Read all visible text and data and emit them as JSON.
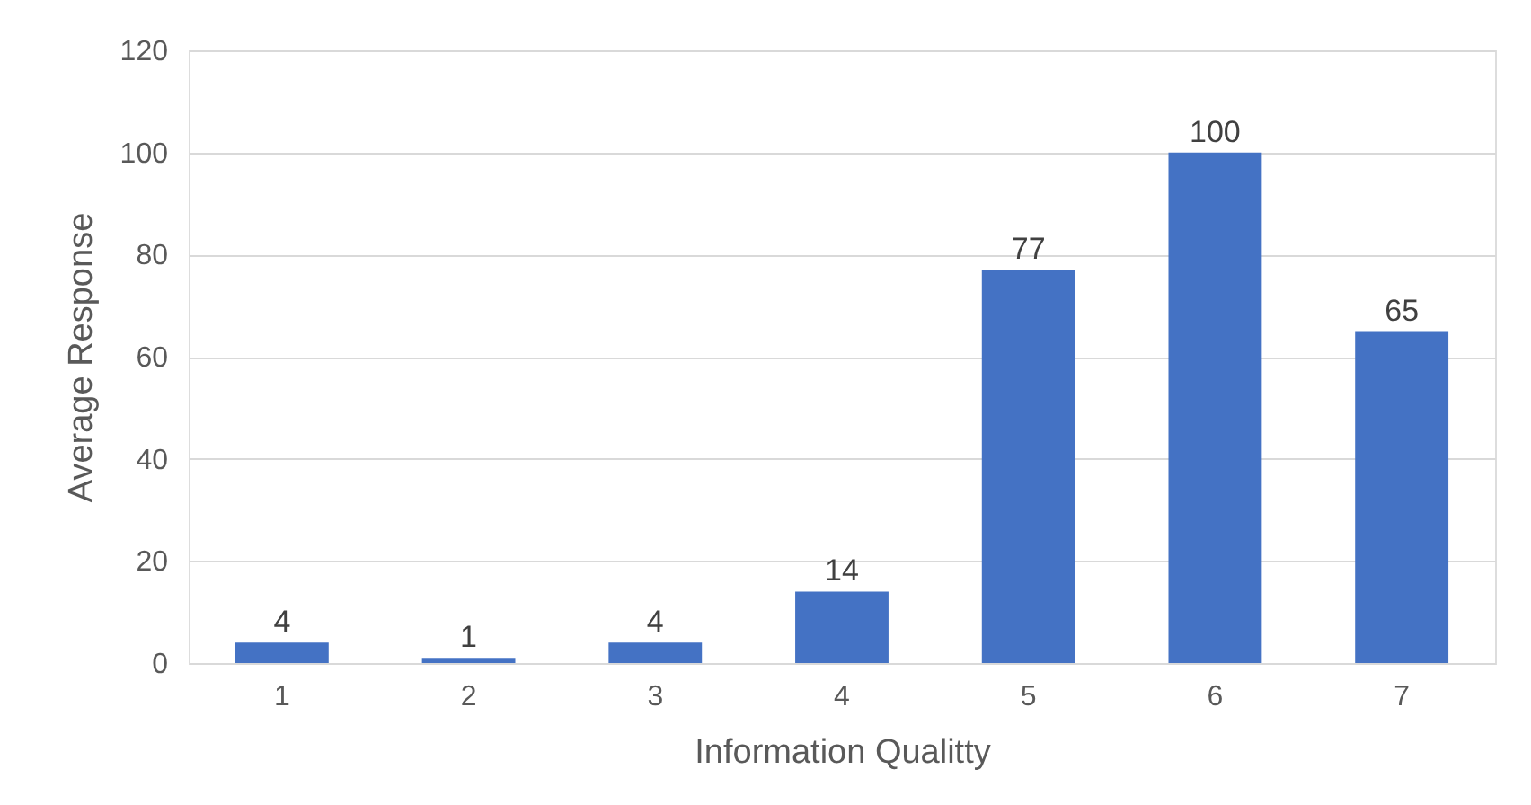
{
  "chart_data": {
    "type": "bar",
    "xlabel": "Information Qualitty",
    "ylabel": "Average Response",
    "categories": [
      "1",
      "2",
      "3",
      "4",
      "5",
      "6",
      "7"
    ],
    "values": [
      4,
      1,
      4,
      14,
      77,
      100,
      65
    ],
    "color": "#4472c4",
    "ylim": [
      0,
      120
    ],
    "yticks": [
      0,
      20,
      40,
      60,
      80,
      100,
      120
    ],
    "grid": "y",
    "data_labels": true
  }
}
